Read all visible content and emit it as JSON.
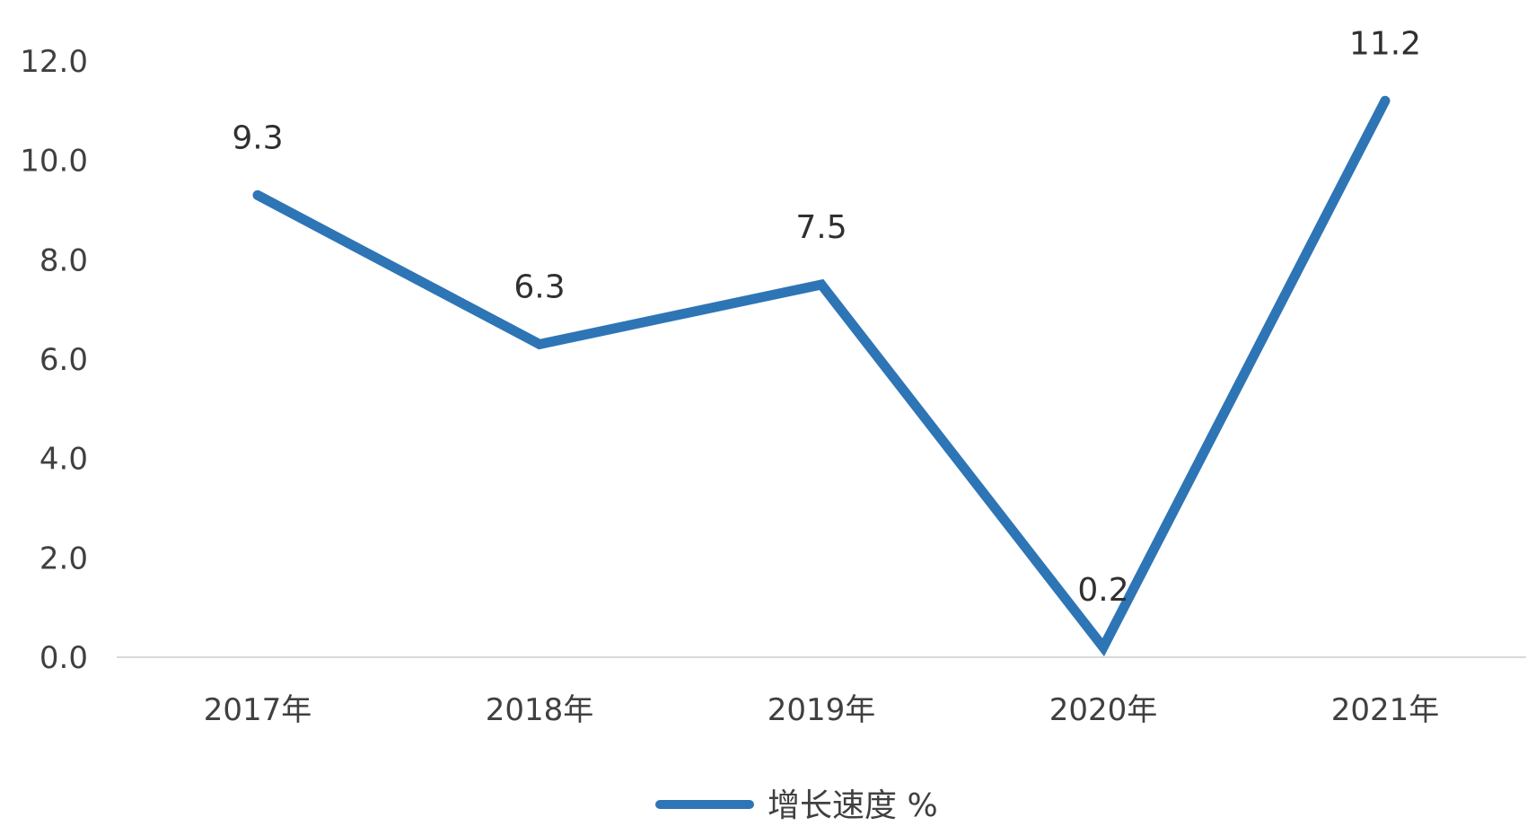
{
  "chart_data": {
    "type": "line",
    "categories": [
      "2017年",
      "2018年",
      "2019年",
      "2020年",
      "2021年"
    ],
    "series": [
      {
        "name": "增长速度 %",
        "values": [
          9.3,
          6.3,
          7.5,
          0.2,
          11.2
        ],
        "data_labels": [
          "9.3",
          "6.3",
          "7.5",
          "0.2",
          "11.2"
        ],
        "color": "#2e75b6"
      }
    ],
    "y_ticks": [
      "0.0",
      "2.0",
      "4.0",
      "6.0",
      "8.0",
      "10.0",
      "12.0"
    ],
    "ylim": [
      0,
      12
    ],
    "grid": false,
    "legend": "bottom-center",
    "axis_color": "#d9d9d9"
  }
}
